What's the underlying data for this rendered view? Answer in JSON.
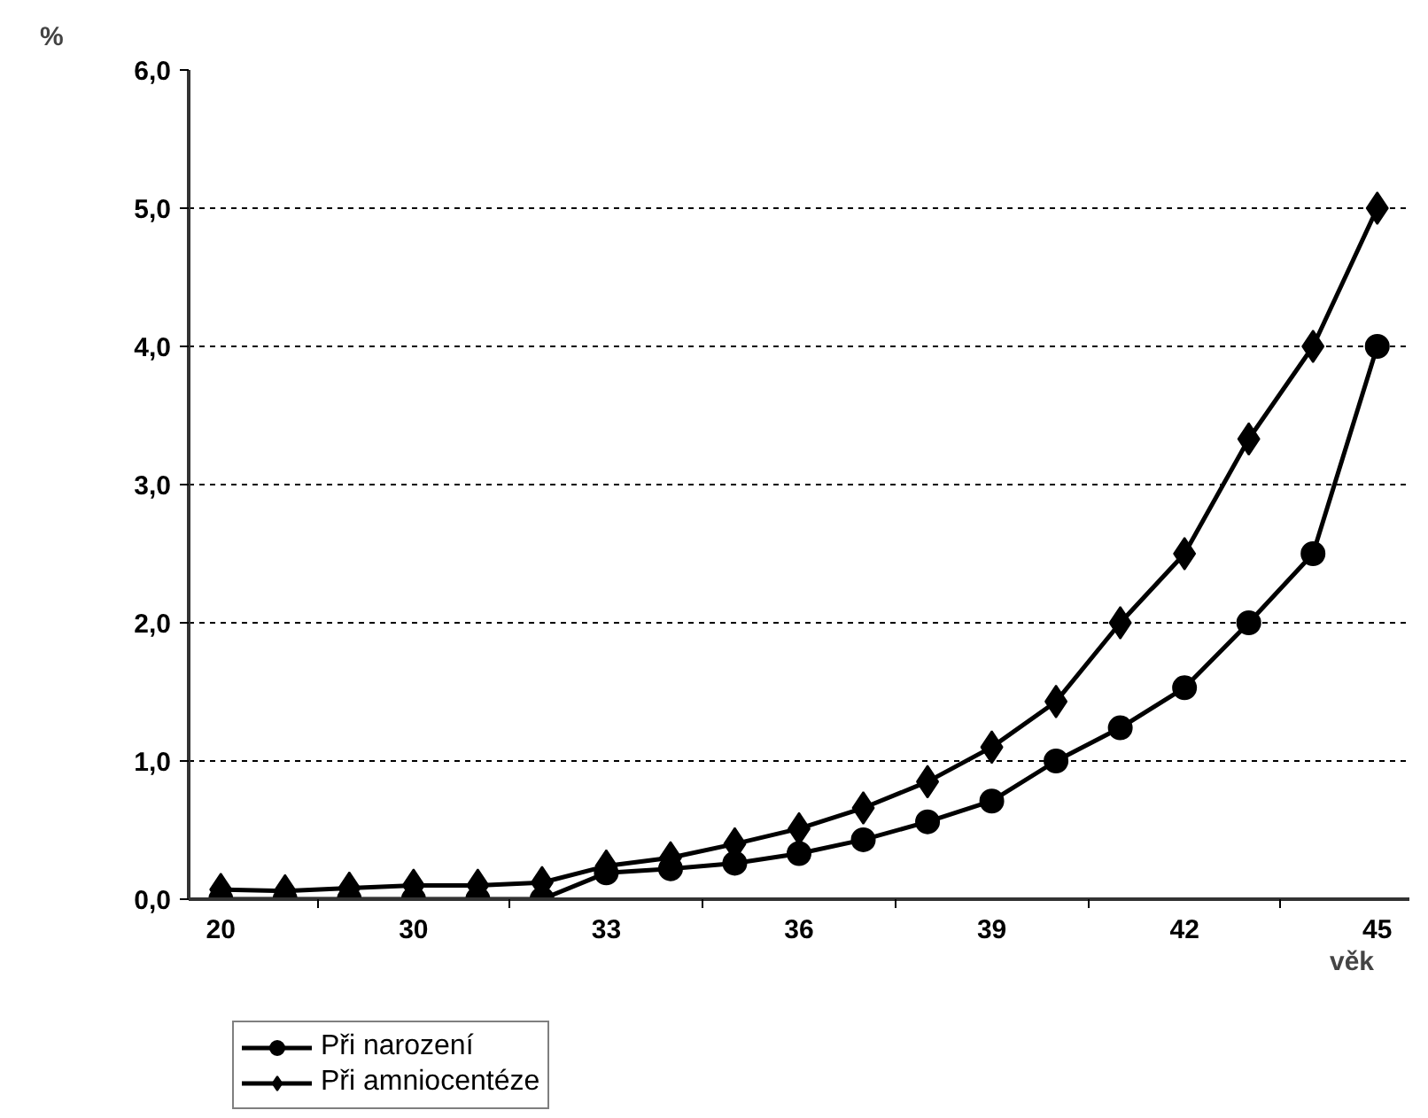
{
  "chart_data": {
    "type": "line",
    "ylabel": "%",
    "xlabel": "věk",
    "categories": [
      "20",
      null,
      null,
      "30",
      null,
      null,
      "33",
      null,
      null,
      "36",
      null,
      null,
      "39",
      null,
      null,
      "42",
      null,
      null,
      "45"
    ],
    "series": [
      {
        "name": "Při narození",
        "color": "#000000",
        "marker": "circle",
        "values": [
          0.0,
          0.0,
          0.0,
          0.0,
          0.0,
          0.0,
          0.19,
          0.22,
          0.26,
          0.33,
          0.43,
          0.56,
          0.71,
          1.0,
          1.24,
          1.53,
          2.0,
          2.5,
          4.0
        ]
      },
      {
        "name": "Při amniocentéze",
        "color": "#000000",
        "marker": "diamond",
        "values": [
          0.07,
          0.06,
          0.08,
          0.1,
          0.1,
          0.12,
          0.24,
          0.3,
          0.4,
          0.51,
          0.66,
          0.85,
          1.1,
          1.43,
          2.0,
          2.5,
          3.33,
          4.0,
          5.0
        ]
      }
    ],
    "ylim": [
      0,
      6
    ],
    "yticks": [
      {
        "value": 0,
        "label": "0,0"
      },
      {
        "value": 1,
        "label": "1,0"
      },
      {
        "value": 2,
        "label": "2,0"
      },
      {
        "value": 3,
        "label": "3,0"
      },
      {
        "value": 4,
        "label": "4,0"
      },
      {
        "value": 5,
        "label": "5,0"
      },
      {
        "value": 6,
        "label": "6,0"
      }
    ],
    "grid": "y",
    "legend": "bottom left",
    "line_style": "solid"
  }
}
